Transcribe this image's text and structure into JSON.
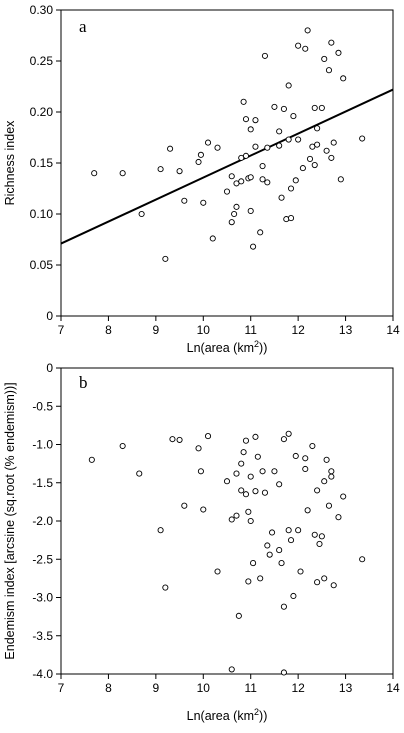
{
  "chart_data": [
    {
      "type": "scatter",
      "panel_label": "a",
      "xlabel": "Ln(area (km²))",
      "ylabel": "Richness index",
      "xlim": [
        7,
        14
      ],
      "ylim": [
        0,
        0.3
      ],
      "x_ticks": [
        7,
        8,
        9,
        10,
        11,
        12,
        13,
        14
      ],
      "y_ticks": [
        "0",
        "0.05",
        "0.10",
        "0.15",
        "0.20",
        "0.25",
        "0.30"
      ],
      "y_tick_values": [
        0,
        0.05,
        0.1,
        0.15,
        0.2,
        0.25,
        0.3
      ],
      "regression_line": {
        "x": [
          7,
          14
        ],
        "y": [
          0.071,
          0.222
        ]
      },
      "points": [
        {
          "x": 7.7,
          "y": 0.14
        },
        {
          "x": 8.3,
          "y": 0.14
        },
        {
          "x": 8.7,
          "y": 0.1
        },
        {
          "x": 9.1,
          "y": 0.144
        },
        {
          "x": 9.2,
          "y": 0.056
        },
        {
          "x": 9.3,
          "y": 0.164
        },
        {
          "x": 9.5,
          "y": 0.142
        },
        {
          "x": 9.6,
          "y": 0.113
        },
        {
          "x": 9.9,
          "y": 0.151
        },
        {
          "x": 9.95,
          "y": 0.158
        },
        {
          "x": 10.0,
          "y": 0.111
        },
        {
          "x": 10.1,
          "y": 0.17
        },
        {
          "x": 10.2,
          "y": 0.076
        },
        {
          "x": 10.3,
          "y": 0.165
        },
        {
          "x": 10.5,
          "y": 0.122
        },
        {
          "x": 10.6,
          "y": 0.137
        },
        {
          "x": 10.6,
          "y": 0.092
        },
        {
          "x": 10.65,
          "y": 0.1
        },
        {
          "x": 10.7,
          "y": 0.13
        },
        {
          "x": 10.7,
          "y": 0.107
        },
        {
          "x": 10.8,
          "y": 0.132
        },
        {
          "x": 10.8,
          "y": 0.155
        },
        {
          "x": 10.85,
          "y": 0.21
        },
        {
          "x": 10.9,
          "y": 0.193
        },
        {
          "x": 10.9,
          "y": 0.157
        },
        {
          "x": 10.95,
          "y": 0.135
        },
        {
          "x": 11.0,
          "y": 0.136
        },
        {
          "x": 11.0,
          "y": 0.183
        },
        {
          "x": 11.0,
          "y": 0.103
        },
        {
          "x": 11.05,
          "y": 0.068
        },
        {
          "x": 11.1,
          "y": 0.166
        },
        {
          "x": 11.1,
          "y": 0.192
        },
        {
          "x": 11.2,
          "y": 0.082
        },
        {
          "x": 11.25,
          "y": 0.147
        },
        {
          "x": 11.25,
          "y": 0.134
        },
        {
          "x": 11.3,
          "y": 0.255
        },
        {
          "x": 11.35,
          "y": 0.131
        },
        {
          "x": 11.35,
          "y": 0.165
        },
        {
          "x": 11.5,
          "y": 0.205
        },
        {
          "x": 11.6,
          "y": 0.181
        },
        {
          "x": 11.6,
          "y": 0.167
        },
        {
          "x": 11.65,
          "y": 0.116
        },
        {
          "x": 11.7,
          "y": 0.203
        },
        {
          "x": 11.75,
          "y": 0.095
        },
        {
          "x": 11.8,
          "y": 0.173
        },
        {
          "x": 11.8,
          "y": 0.226
        },
        {
          "x": 11.85,
          "y": 0.096
        },
        {
          "x": 11.85,
          "y": 0.125
        },
        {
          "x": 11.9,
          "y": 0.196
        },
        {
          "x": 11.95,
          "y": 0.133
        },
        {
          "x": 12.0,
          "y": 0.265
        },
        {
          "x": 12.0,
          "y": 0.173
        },
        {
          "x": 12.1,
          "y": 0.145
        },
        {
          "x": 12.15,
          "y": 0.262
        },
        {
          "x": 12.2,
          "y": 0.28
        },
        {
          "x": 12.25,
          "y": 0.154
        },
        {
          "x": 12.3,
          "y": 0.166
        },
        {
          "x": 12.35,
          "y": 0.204
        },
        {
          "x": 12.35,
          "y": 0.148
        },
        {
          "x": 12.4,
          "y": 0.184
        },
        {
          "x": 12.4,
          "y": 0.168
        },
        {
          "x": 12.5,
          "y": 0.204
        },
        {
          "x": 12.55,
          "y": 0.252
        },
        {
          "x": 12.6,
          "y": 0.162
        },
        {
          "x": 12.65,
          "y": 0.241
        },
        {
          "x": 12.7,
          "y": 0.268
        },
        {
          "x": 12.7,
          "y": 0.155
        },
        {
          "x": 12.75,
          "y": 0.17
        },
        {
          "x": 12.85,
          "y": 0.258
        },
        {
          "x": 12.9,
          "y": 0.134
        },
        {
          "x": 12.95,
          "y": 0.233
        },
        {
          "x": 13.35,
          "y": 0.174
        }
      ]
    },
    {
      "type": "scatter",
      "panel_label": "b",
      "xlabel": "Ln(area (km²))",
      "ylabel": "Endemism index [arcsine (sq.root (% endemism))]",
      "xlim": [
        7,
        14
      ],
      "ylim": [
        -4.0,
        0
      ],
      "x_ticks": [
        7,
        8,
        9,
        10,
        11,
        12,
        13,
        14
      ],
      "y_ticks": [
        "0",
        "-0.5",
        "-1.0",
        "-1.5",
        "-2.0",
        "-2.5",
        "-3.0",
        "-3.5",
        "-4.0"
      ],
      "y_tick_values": [
        0,
        -0.5,
        -1.0,
        -1.5,
        -2.0,
        -2.5,
        -3.0,
        -3.5,
        -4.0
      ],
      "points": [
        {
          "x": 7.65,
          "y": -1.2
        },
        {
          "x": 8.3,
          "y": -1.02
        },
        {
          "x": 8.65,
          "y": -1.38
        },
        {
          "x": 9.1,
          "y": -2.12
        },
        {
          "x": 9.2,
          "y": -2.87
        },
        {
          "x": 9.35,
          "y": -0.93
        },
        {
          "x": 9.5,
          "y": -0.94
        },
        {
          "x": 9.6,
          "y": -1.8
        },
        {
          "x": 9.9,
          "y": -1.05
        },
        {
          "x": 9.95,
          "y": -1.35
        },
        {
          "x": 10.0,
          "y": -1.85
        },
        {
          "x": 10.1,
          "y": -0.89
        },
        {
          "x": 10.3,
          "y": -2.66
        },
        {
          "x": 10.5,
          "y": -1.48
        },
        {
          "x": 10.6,
          "y": -1.98
        },
        {
          "x": 10.6,
          "y": -3.94
        },
        {
          "x": 10.7,
          "y": -1.38
        },
        {
          "x": 10.7,
          "y": -1.93
        },
        {
          "x": 10.75,
          "y": -3.24
        },
        {
          "x": 10.8,
          "y": -1.6
        },
        {
          "x": 10.8,
          "y": -1.25
        },
        {
          "x": 10.85,
          "y": -1.1
        },
        {
          "x": 10.9,
          "y": -0.95
        },
        {
          "x": 10.9,
          "y": -1.65
        },
        {
          "x": 10.95,
          "y": -1.88
        },
        {
          "x": 10.95,
          "y": -2.79
        },
        {
          "x": 11.0,
          "y": -1.42
        },
        {
          "x": 11.0,
          "y": -2.0
        },
        {
          "x": 11.05,
          "y": -2.55
        },
        {
          "x": 11.1,
          "y": -0.9
        },
        {
          "x": 11.1,
          "y": -1.61
        },
        {
          "x": 11.15,
          "y": -1.16
        },
        {
          "x": 11.2,
          "y": -2.75
        },
        {
          "x": 11.25,
          "y": -1.35
        },
        {
          "x": 11.3,
          "y": -1.63
        },
        {
          "x": 11.35,
          "y": -2.32
        },
        {
          "x": 11.4,
          "y": -2.44
        },
        {
          "x": 11.45,
          "y": -2.15
        },
        {
          "x": 11.5,
          "y": -1.35
        },
        {
          "x": 11.6,
          "y": -1.52
        },
        {
          "x": 11.6,
          "y": -2.38
        },
        {
          "x": 11.65,
          "y": -2.55
        },
        {
          "x": 11.7,
          "y": -0.93
        },
        {
          "x": 11.7,
          "y": -3.12
        },
        {
          "x": 11.7,
          "y": -3.98
        },
        {
          "x": 11.8,
          "y": -0.86
        },
        {
          "x": 11.8,
          "y": -2.12
        },
        {
          "x": 11.85,
          "y": -2.25
        },
        {
          "x": 11.9,
          "y": -2.98
        },
        {
          "x": 11.95,
          "y": -1.15
        },
        {
          "x": 12.0,
          "y": -2.12
        },
        {
          "x": 12.05,
          "y": -2.66
        },
        {
          "x": 12.15,
          "y": -1.18
        },
        {
          "x": 12.15,
          "y": -1.32
        },
        {
          "x": 12.2,
          "y": -1.86
        },
        {
          "x": 12.3,
          "y": -1.02
        },
        {
          "x": 12.35,
          "y": -2.18
        },
        {
          "x": 12.4,
          "y": -1.6
        },
        {
          "x": 12.4,
          "y": -2.8
        },
        {
          "x": 12.45,
          "y": -2.3
        },
        {
          "x": 12.5,
          "y": -2.2
        },
        {
          "x": 12.55,
          "y": -1.48
        },
        {
          "x": 12.55,
          "y": -2.75
        },
        {
          "x": 12.6,
          "y": -1.2
        },
        {
          "x": 12.65,
          "y": -1.8
        },
        {
          "x": 12.7,
          "y": -1.35
        },
        {
          "x": 12.7,
          "y": -1.42
        },
        {
          "x": 12.75,
          "y": -2.84
        },
        {
          "x": 12.85,
          "y": -1.95
        },
        {
          "x": 12.95,
          "y": -1.68
        },
        {
          "x": 13.35,
          "y": -2.5
        }
      ]
    }
  ]
}
